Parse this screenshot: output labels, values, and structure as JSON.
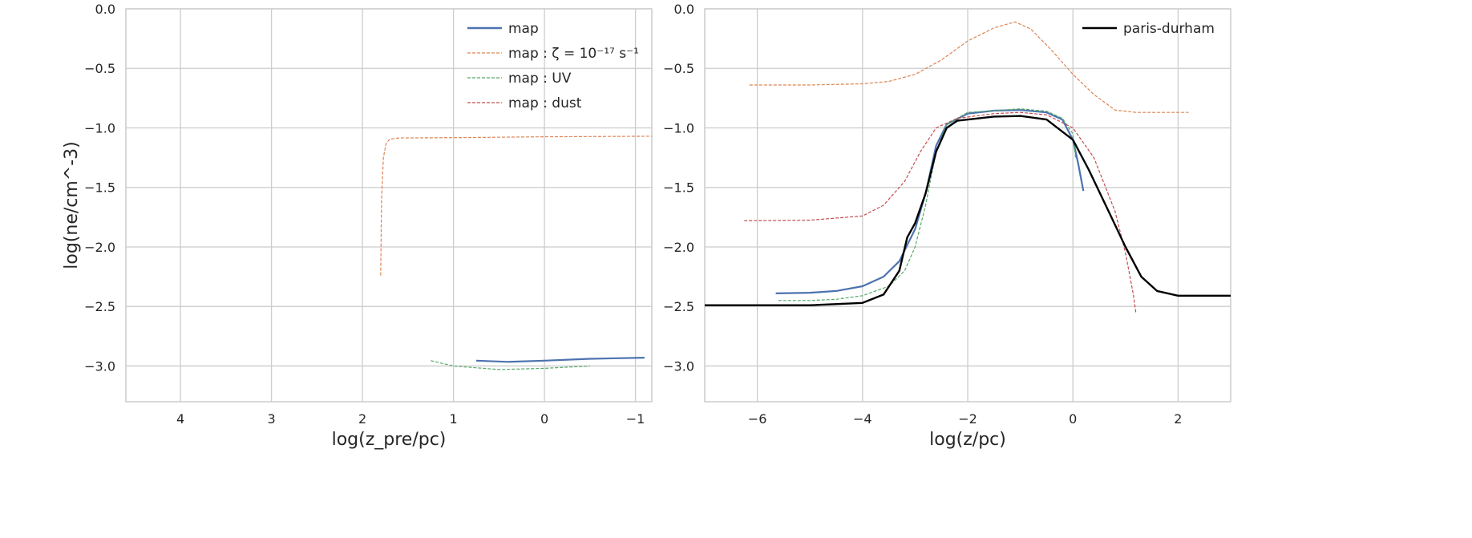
{
  "chart_data": [
    {
      "type": "line",
      "title": "",
      "xlabel": "log(z_pre/pc)",
      "ylabel": "log(ne/cm^-3)",
      "xlim": [
        4.6,
        -1.18
      ],
      "ylim": [
        -3.3,
        0.0
      ],
      "xticks": [
        4,
        3,
        2,
        1,
        0,
        -1
      ],
      "xtick_labels": [
        "4",
        "3",
        "2",
        "1",
        "0",
        "−1"
      ],
      "yticks": [
        0.0,
        -0.5,
        -1.0,
        -1.5,
        -2.0,
        -2.5,
        -3.0
      ],
      "ytick_labels": [
        "0.0",
        "−0.5",
        "−1.0",
        "−1.5",
        "−2.0",
        "−2.5",
        "−3.0"
      ],
      "grid": true,
      "legend_position": "top-right",
      "series": [
        {
          "name": "map",
          "color": "#4c72b0",
          "style": "solid",
          "width": 2.2,
          "x": [
            0.75,
            0.4,
            0.0,
            -0.5,
            -1.1
          ],
          "y": [
            -2.955,
            -2.965,
            -2.955,
            -2.94,
            -2.93
          ]
        },
        {
          "name": "map : ζ = 10⁻¹⁷ s⁻¹",
          "color": "#dd8452",
          "style": "dashed",
          "width": 1.2,
          "x": [
            1.8,
            1.79,
            1.77,
            1.74,
            1.7,
            1.6,
            1.0,
            0.0,
            -1.18
          ],
          "y": [
            -2.24,
            -1.6,
            -1.25,
            -1.13,
            -1.095,
            -1.085,
            -1.082,
            -1.075,
            -1.07
          ]
        },
        {
          "name": "map : UV",
          "color": "#55a868",
          "style": "dashed",
          "width": 1.2,
          "x": [
            1.25,
            1.0,
            0.5,
            0.0,
            -0.5
          ],
          "y": [
            -2.955,
            -3.0,
            -3.03,
            -3.02,
            -3.0
          ]
        },
        {
          "name": "map : dust",
          "color": "#c44e52",
          "style": "dashed",
          "width": 1.2,
          "x": [],
          "y": []
        }
      ]
    },
    {
      "type": "line",
      "title": "",
      "xlabel": "log(z/pc)",
      "ylabel": "",
      "xlim": [
        -7.0,
        3.0
      ],
      "ylim": [
        -3.3,
        0.0
      ],
      "xticks": [
        -6,
        -4,
        -2,
        0,
        2
      ],
      "xtick_labels": [
        "−6",
        "−4",
        "−2",
        "0",
        "2"
      ],
      "yticks": [
        0.0,
        -0.5,
        -1.0,
        -1.5,
        -2.0,
        -2.5,
        -3.0
      ],
      "ytick_labels": [
        "0.0",
        "−0.5",
        "−1.0",
        "−1.5",
        "−2.0",
        "−2.5",
        "−3.0"
      ],
      "grid": true,
      "legend_position": "top-right",
      "series": [
        {
          "name": "map",
          "color": "#4c72b0",
          "style": "solid",
          "width": 2.2,
          "in_legend": false,
          "x": [
            -5.65,
            -5.0,
            -4.5,
            -4.0,
            -3.6,
            -3.3,
            -3.0,
            -2.8,
            -2.6,
            -2.4,
            -2.0,
            -1.5,
            -1.0,
            -0.5,
            -0.2,
            0.0,
            0.1,
            0.2
          ],
          "y": [
            -2.39,
            -2.385,
            -2.37,
            -2.33,
            -2.25,
            -2.12,
            -1.85,
            -1.55,
            -1.15,
            -0.97,
            -0.88,
            -0.855,
            -0.85,
            -0.87,
            -0.93,
            -1.1,
            -1.3,
            -1.53
          ]
        },
        {
          "name": "map : ζ = 10⁻¹⁷ s⁻¹",
          "color": "#dd8452",
          "style": "dashed",
          "width": 1.2,
          "in_legend": false,
          "x": [
            -6.15,
            -5.0,
            -4.0,
            -3.5,
            -3.0,
            -2.5,
            -2.0,
            -1.5,
            -1.1,
            -0.8,
            -0.4,
            0.0,
            0.4,
            0.8,
            1.2,
            2.2
          ],
          "y": [
            -0.64,
            -0.64,
            -0.63,
            -0.61,
            -0.55,
            -0.43,
            -0.27,
            -0.16,
            -0.11,
            -0.17,
            -0.35,
            -0.55,
            -0.72,
            -0.85,
            -0.87,
            -0.87
          ]
        },
        {
          "name": "map : UV",
          "color": "#55a868",
          "style": "dashed",
          "width": 1.2,
          "in_legend": false,
          "x": [
            -5.6,
            -5.0,
            -4.5,
            -4.0,
            -3.5,
            -3.2,
            -3.0,
            -2.8,
            -2.6,
            -2.4,
            -2.0,
            -1.0,
            -0.5,
            -0.2,
            0.0,
            0.05
          ],
          "y": [
            -2.45,
            -2.45,
            -2.44,
            -2.41,
            -2.33,
            -2.2,
            -2.0,
            -1.65,
            -1.2,
            -0.97,
            -0.87,
            -0.84,
            -0.86,
            -0.92,
            -1.05,
            -1.25
          ]
        },
        {
          "name": "map : dust",
          "color": "#c44e52",
          "style": "dashed",
          "width": 1.2,
          "in_legend": false,
          "x": [
            -6.25,
            -5.0,
            -4.0,
            -3.6,
            -3.2,
            -2.9,
            -2.6,
            -2.2,
            -1.5,
            -1.0,
            -0.5,
            0.0,
            0.4,
            0.8,
            1.0,
            1.15,
            1.2
          ],
          "y": [
            -1.78,
            -1.775,
            -1.74,
            -1.65,
            -1.45,
            -1.2,
            -1.0,
            -0.92,
            -0.88,
            -0.87,
            -0.89,
            -1.0,
            -1.25,
            -1.7,
            -2.05,
            -2.4,
            -2.56
          ]
        },
        {
          "name": "paris-durham",
          "color": "#000000",
          "style": "solid",
          "width": 2.4,
          "x": [
            -7.0,
            -5.0,
            -4.0,
            -3.6,
            -3.3,
            -3.15,
            -3.0,
            -2.8,
            -2.6,
            -2.4,
            -2.2,
            -1.5,
            -1.0,
            -0.5,
            0.0,
            0.3,
            0.7,
            1.0,
            1.3,
            1.6,
            2.0,
            3.0
          ],
          "y": [
            -2.49,
            -2.49,
            -2.47,
            -2.4,
            -2.2,
            -1.92,
            -1.8,
            -1.55,
            -1.2,
            -1.0,
            -0.94,
            -0.905,
            -0.9,
            -0.93,
            -1.1,
            -1.35,
            -1.72,
            -2.0,
            -2.25,
            -2.37,
            -2.41,
            -2.41
          ]
        }
      ]
    }
  ]
}
